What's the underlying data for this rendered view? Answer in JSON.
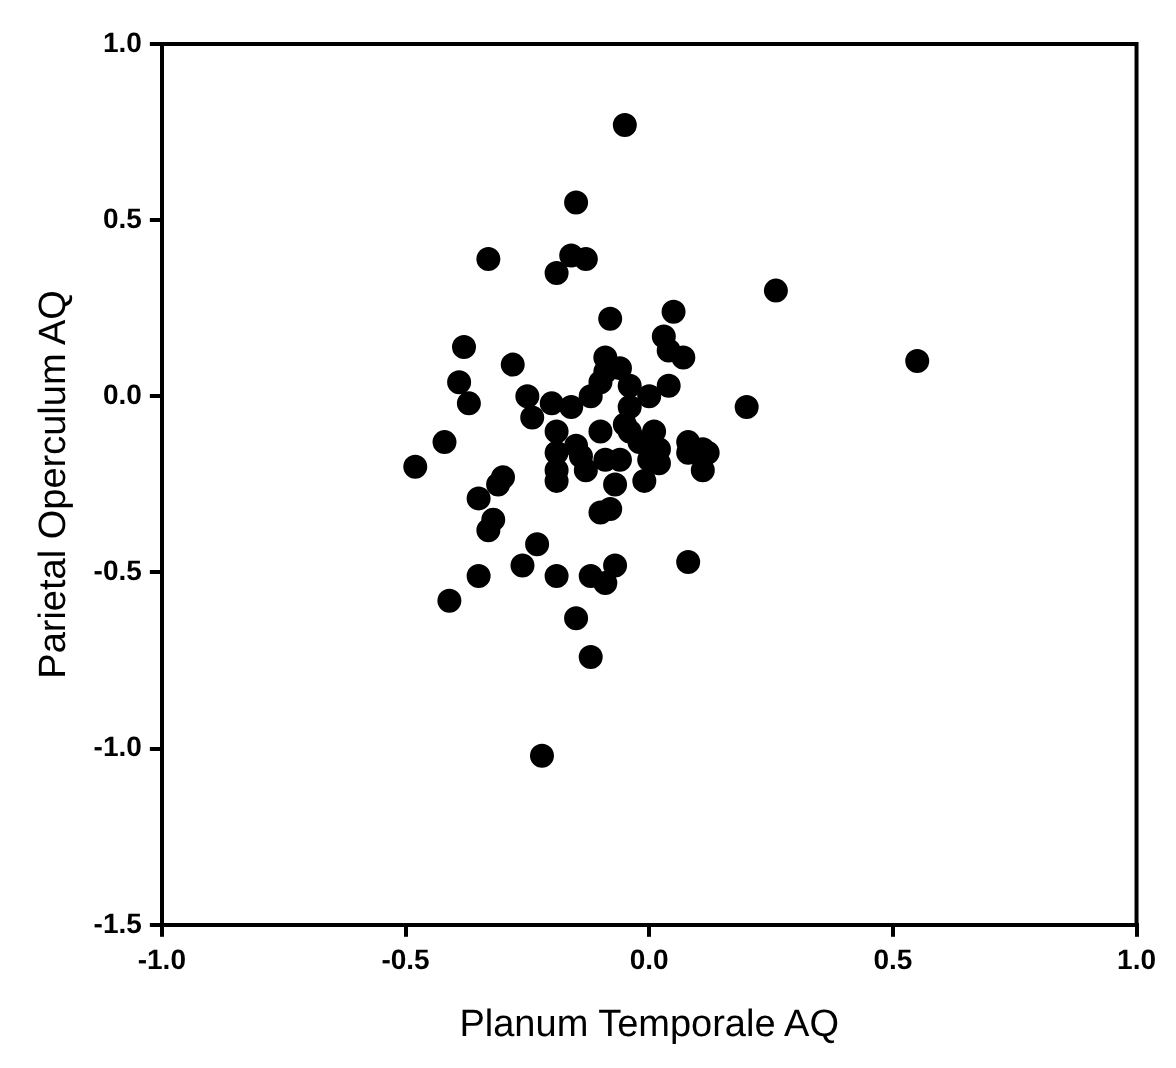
{
  "chart_data": {
    "type": "scatter",
    "xlabel": "Planum Temporale AQ",
    "ylabel": "Parietal Operculum AQ",
    "xlim": [
      -1.0,
      1.0
    ],
    "xticks": [
      {
        "value": -1,
        "label": "-1.0"
      },
      {
        "value": -0.5,
        "label": "-0.5"
      },
      {
        "value": 0,
        "label": "0.0"
      },
      {
        "value": 0.5,
        "label": "0.5"
      },
      {
        "value": 1,
        "label": "1.0"
      }
    ],
    "ylim": [
      -1.5,
      1.0
    ],
    "yticks": [
      {
        "value": -1.5,
        "label": "-1.5"
      },
      {
        "value": -1,
        "label": "-1.0"
      },
      {
        "value": -0.5,
        "label": "-0.5"
      },
      {
        "value": 0,
        "label": "0.0"
      },
      {
        "value": 0.5,
        "label": "0.5"
      },
      {
        "value": 1,
        "label": "1.0"
      }
    ],
    "grid": false,
    "legend": false,
    "marker": "circle",
    "series": [
      {
        "color": "#000000",
        "x": [
          -0.05,
          -0.15,
          -0.33,
          -0.16,
          -0.13,
          -0.19,
          0.26,
          0.05,
          -0.08,
          0.03,
          0.04,
          0.07,
          -0.38,
          -0.28,
          0.55,
          -0.09,
          -0.06,
          -0.09,
          -0.1,
          -0.39,
          -0.04,
          0.04,
          -0.25,
          -0.12,
          0.0,
          -0.37,
          -0.2,
          -0.16,
          -0.04,
          0.2,
          -0.24,
          -0.05,
          -0.1,
          -0.19,
          -0.04,
          0.01,
          -0.42,
          -0.02,
          0.08,
          -0.15,
          0.02,
          0.11,
          -0.19,
          -0.14,
          0.08,
          0.12,
          -0.09,
          -0.06,
          0.0,
          0.02,
          -0.48,
          -0.13,
          -0.19,
          0.11,
          -0.3,
          -0.19,
          -0.01,
          -0.31,
          -0.07,
          -0.35,
          -0.1,
          -0.08,
          -0.32,
          -0.33,
          -0.23,
          -0.26,
          -0.07,
          0.08,
          -0.35,
          -0.19,
          -0.12,
          -0.09,
          -0.41,
          -0.15,
          -0.12,
          -0.22
        ],
        "values": [
          0.77,
          0.55,
          0.39,
          0.4,
          0.39,
          0.35,
          0.3,
          0.24,
          0.22,
          0.17,
          0.13,
          0.11,
          0.14,
          0.09,
          0.1,
          0.11,
          0.08,
          0.07,
          0.04,
          0.04,
          0.03,
          0.03,
          0.0,
          0.0,
          0.0,
          -0.02,
          -0.02,
          -0.03,
          -0.03,
          -0.03,
          -0.06,
          -0.08,
          -0.1,
          -0.1,
          -0.1,
          -0.1,
          -0.13,
          -0.13,
          -0.13,
          -0.14,
          -0.15,
          -0.15,
          -0.16,
          -0.17,
          -0.16,
          -0.16,
          -0.18,
          -0.18,
          -0.18,
          -0.19,
          -0.2,
          -0.21,
          -0.21,
          -0.21,
          -0.23,
          -0.24,
          -0.24,
          -0.25,
          -0.25,
          -0.29,
          -0.33,
          -0.32,
          -0.35,
          -0.38,
          -0.42,
          -0.48,
          -0.48,
          -0.47,
          -0.51,
          -0.51,
          -0.51,
          -0.53,
          -0.58,
          -0.63,
          -0.74,
          -1.02
        ]
      }
    ]
  }
}
